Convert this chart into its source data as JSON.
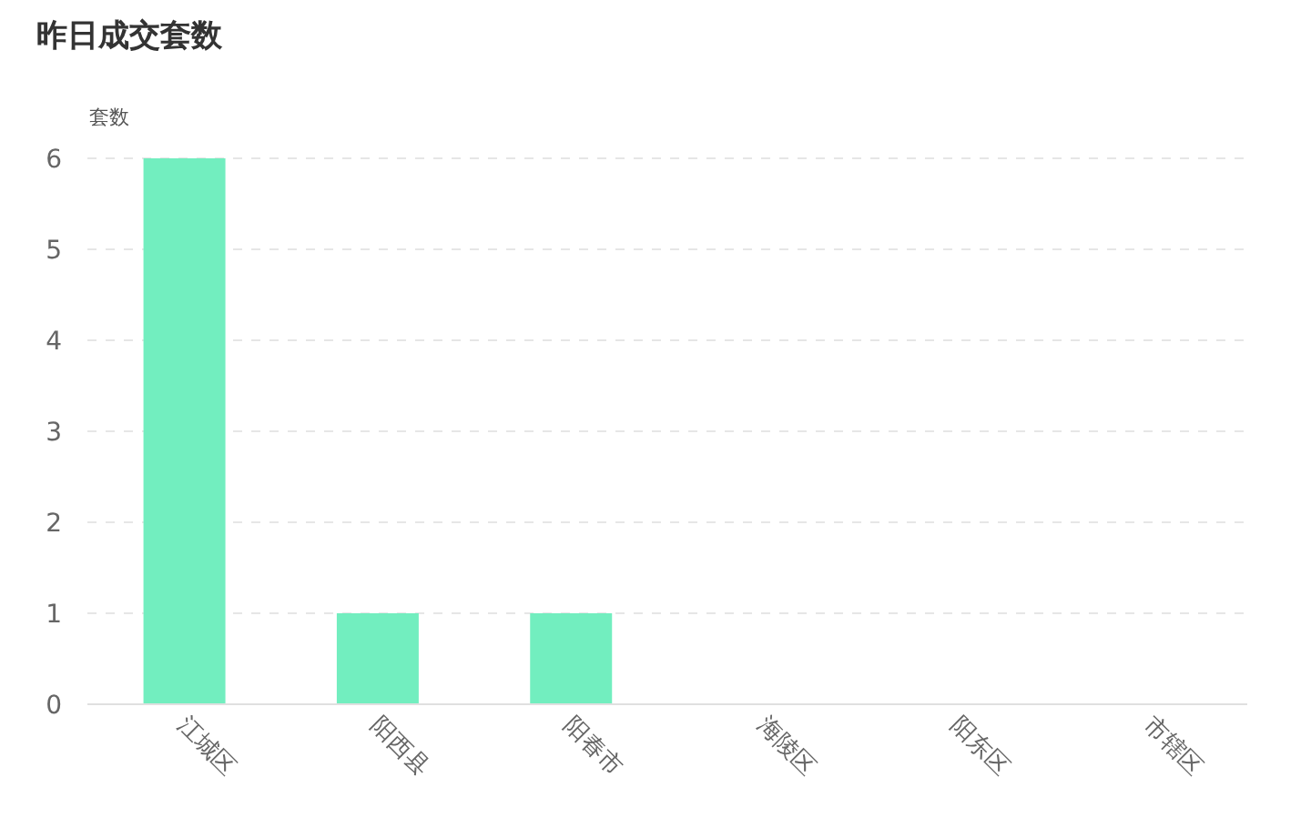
{
  "chart_data": {
    "type": "bar",
    "title": "昨日成交套数",
    "ylabel": "套数",
    "categories": [
      "江城区",
      "阳西县",
      "阳春市",
      "海陵区",
      "阳东区",
      "市辖区"
    ],
    "values": [
      6,
      1,
      1,
      0,
      0,
      0
    ],
    "color": "#72eebf",
    "ylim": [
      0,
      6
    ],
    "yticks": [
      0,
      1,
      2,
      3,
      4,
      5,
      6
    ],
    "grid": "y"
  }
}
